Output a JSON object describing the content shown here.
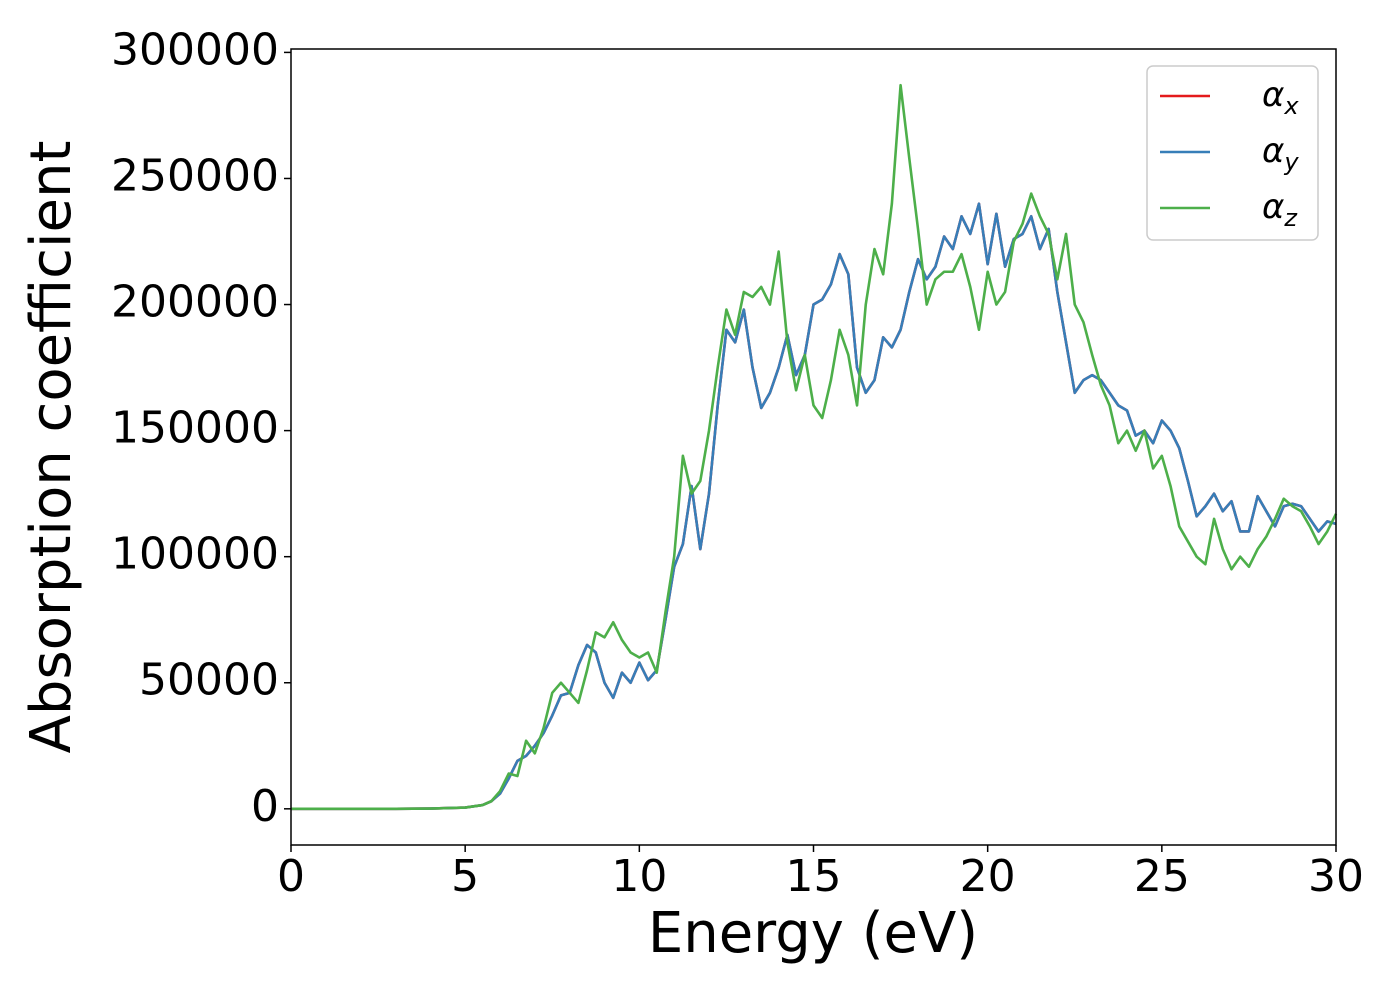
{
  "chart_data": {
    "type": "line",
    "xlabel": "Energy (eV)",
    "ylabel": "Absorption coefficient",
    "x": [
      0,
      1,
      2,
      3,
      4,
      5,
      5.5,
      5.75,
      6,
      6.25,
      6.5,
      6.75,
      7,
      7.25,
      7.5,
      7.75,
      8,
      8.25,
      8.5,
      8.75,
      9,
      9.25,
      9.5,
      9.75,
      10,
      10.25,
      10.5,
      10.75,
      11,
      11.25,
      11.5,
      11.75,
      12,
      12.25,
      12.5,
      12.75,
      13,
      13.25,
      13.5,
      13.75,
      14,
      14.25,
      14.5,
      14.75,
      15,
      15.25,
      15.5,
      15.75,
      16,
      16.25,
      16.5,
      16.75,
      17,
      17.25,
      17.5,
      17.75,
      18,
      18.25,
      18.5,
      18.75,
      19,
      19.25,
      19.5,
      19.75,
      20,
      20.25,
      20.5,
      20.75,
      21,
      21.25,
      21.5,
      21.75,
      22,
      22.25,
      22.5,
      22.75,
      23,
      23.25,
      23.5,
      23.75,
      24,
      24.25,
      24.5,
      24.75,
      25,
      25.25,
      25.5,
      25.75,
      26,
      26.25,
      26.5,
      26.75,
      27,
      27.25,
      27.5,
      27.75,
      28,
      28.25,
      28.5,
      28.75,
      29,
      29.25,
      29.5,
      29.75,
      30
    ],
    "series": [
      {
        "name": "αx",
        "color": "#e41a1c",
        "values": [
          0,
          0,
          0,
          0,
          100,
          500,
          1500,
          3000,
          6000,
          12000,
          19000,
          21000,
          25000,
          30000,
          37000,
          45000,
          46000,
          57000,
          65000,
          62000,
          50000,
          44000,
          54000,
          50000,
          58000,
          51000,
          55000,
          75000,
          96000,
          105000,
          128000,
          103000,
          125000,
          160000,
          190000,
          185000,
          198000,
          175000,
          159000,
          165000,
          175000,
          188000,
          172000,
          180000,
          200000,
          202000,
          208000,
          220000,
          212000,
          175000,
          165000,
          170000,
          187000,
          183000,
          190000,
          205000,
          218000,
          210000,
          215000,
          227000,
          222000,
          235000,
          228000,
          240000,
          216000,
          236000,
          215000,
          226000,
          228000,
          235000,
          222000,
          230000,
          205000,
          185000,
          165000,
          170000,
          172000,
          170000,
          165000,
          160000,
          158000,
          148000,
          150000,
          145000,
          154000,
          150000,
          143000,
          130000,
          116000,
          120000,
          125000,
          118000,
          122000,
          110000,
          110000,
          124000,
          118000,
          112000,
          120000,
          121000,
          120000,
          115000,
          110000,
          114000,
          113000
        ]
      },
      {
        "name": "αy",
        "color": "#377eb8",
        "values": [
          0,
          0,
          0,
          0,
          100,
          500,
          1500,
          3000,
          6000,
          12000,
          19000,
          21000,
          25000,
          30000,
          37000,
          45000,
          46000,
          57000,
          65000,
          62000,
          50000,
          44000,
          54000,
          50000,
          58000,
          51000,
          55000,
          75000,
          96000,
          105000,
          128000,
          103000,
          125000,
          160000,
          190000,
          185000,
          198000,
          175000,
          159000,
          165000,
          175000,
          188000,
          172000,
          180000,
          200000,
          202000,
          208000,
          220000,
          212000,
          175000,
          165000,
          170000,
          187000,
          183000,
          190000,
          205000,
          218000,
          210000,
          215000,
          227000,
          222000,
          235000,
          228000,
          240000,
          216000,
          236000,
          215000,
          226000,
          228000,
          235000,
          222000,
          230000,
          205000,
          185000,
          165000,
          170000,
          172000,
          170000,
          165000,
          160000,
          158000,
          148000,
          150000,
          145000,
          154000,
          150000,
          143000,
          130000,
          116000,
          120000,
          125000,
          118000,
          122000,
          110000,
          110000,
          124000,
          118000,
          112000,
          120000,
          121000,
          120000,
          115000,
          110000,
          114000,
          113000
        ]
      },
      {
        "name": "αz",
        "color": "#4daf4a",
        "values": [
          0,
          0,
          0,
          0,
          100,
          500,
          1500,
          3000,
          7000,
          14000,
          13000,
          27000,
          22000,
          32000,
          46000,
          50000,
          46000,
          42000,
          55000,
          70000,
          68000,
          74000,
          67000,
          62000,
          60000,
          62000,
          54000,
          78000,
          100000,
          140000,
          125000,
          130000,
          150000,
          175000,
          198000,
          188000,
          205000,
          203000,
          207000,
          200000,
          221000,
          185000,
          166000,
          180000,
          160000,
          155000,
          170000,
          190000,
          180000,
          160000,
          200000,
          222000,
          212000,
          240000,
          287000,
          258000,
          230000,
          200000,
          210000,
          213000,
          213000,
          220000,
          207000,
          190000,
          213000,
          200000,
          205000,
          225000,
          232000,
          244000,
          235000,
          228000,
          210000,
          228000,
          200000,
          193000,
          180000,
          168000,
          160000,
          145000,
          150000,
          142000,
          150000,
          135000,
          140000,
          128000,
          112000,
          106000,
          100000,
          97000,
          115000,
          103000,
          95000,
          100000,
          96000,
          103000,
          108000,
          115000,
          123000,
          120000,
          118000,
          112000,
          105000,
          110000,
          117000
        ]
      }
    ],
    "xlim": [
      0,
      30
    ],
    "xticks": [
      0,
      5,
      10,
      15,
      20,
      25,
      30
    ],
    "ylim": [
      -14350,
      301350
    ],
    "yticks": [
      0,
      50000,
      100000,
      150000,
      200000,
      250000,
      300000
    ],
    "grid": false,
    "legend": "upper right"
  }
}
